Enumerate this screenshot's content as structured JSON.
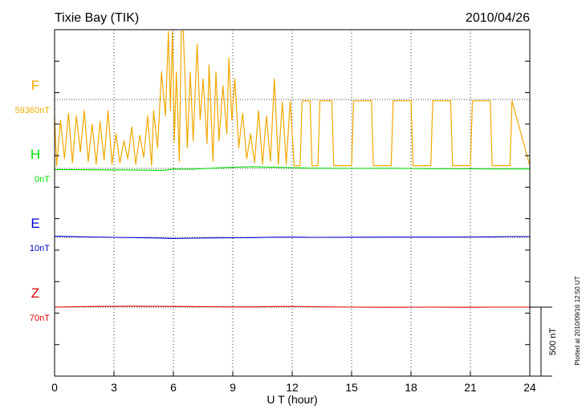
{
  "chart_data": {
    "type": "line",
    "title": "Tixie Bay (TIK)",
    "date": "2010/04/26",
    "xlabel": "U T (hour)",
    "xlim": [
      0,
      24
    ],
    "x_ticks": [
      0,
      3,
      6,
      9,
      12,
      15,
      18,
      21,
      24
    ],
    "x_tick_labels": [
      "0",
      "3",
      "6",
      "9",
      "12",
      "15",
      "18",
      "21",
      "24"
    ],
    "scale_bar_label": "500 nT",
    "scale_bar_nT": 500,
    "plotted_note": "Plotted at 2010/09/16 12:50 UT",
    "grid": "dotted-vertical",
    "series": [
      {
        "name": "F",
        "baseline_label": "59360nT",
        "baseline_nT": 59360,
        "color": "#f0a800",
        "points": [
          [
            0,
            -120
          ],
          [
            0.1,
            -480
          ],
          [
            0.3,
            -150
          ],
          [
            0.5,
            -430
          ],
          [
            0.7,
            -100
          ],
          [
            0.9,
            -460
          ],
          [
            1.1,
            -120
          ],
          [
            1.3,
            -380
          ],
          [
            1.5,
            -80
          ],
          [
            1.7,
            -450
          ],
          [
            1.9,
            -180
          ],
          [
            2.1,
            -470
          ],
          [
            2.3,
            -160
          ],
          [
            2.5,
            -440
          ],
          [
            2.7,
            -80
          ],
          [
            2.9,
            -470
          ],
          [
            3.1,
            -250
          ],
          [
            3.3,
            -460
          ],
          [
            3.5,
            -300
          ],
          [
            3.7,
            -430
          ],
          [
            3.9,
            -200
          ],
          [
            4.1,
            -470
          ],
          [
            4.3,
            -260
          ],
          [
            4.5,
            -420
          ],
          [
            4.7,
            -120
          ],
          [
            4.9,
            -480
          ],
          [
            5.0,
            -80
          ],
          [
            5.2,
            -350
          ],
          [
            5.4,
            200
          ],
          [
            5.6,
            -120
          ],
          [
            5.75,
            700
          ],
          [
            5.85,
            -80
          ],
          [
            5.95,
            600
          ],
          [
            6.05,
            -300
          ],
          [
            6.15,
            200
          ],
          [
            6.3,
            -450
          ],
          [
            6.4,
            500
          ],
          [
            6.5,
            900
          ],
          [
            6.6,
            100
          ],
          [
            6.7,
            -350
          ],
          [
            6.85,
            200
          ],
          [
            7.0,
            -300
          ],
          [
            7.2,
            400
          ],
          [
            7.35,
            -150
          ],
          [
            7.5,
            150
          ],
          [
            7.7,
            -320
          ],
          [
            7.8,
            250
          ],
          [
            7.9,
            -100
          ],
          [
            8.0,
            -450
          ],
          [
            8.15,
            200
          ],
          [
            8.3,
            -300
          ],
          [
            8.5,
            100
          ],
          [
            8.7,
            -250
          ],
          [
            8.8,
            300
          ],
          [
            8.95,
            -150
          ],
          [
            9.1,
            150
          ],
          [
            9.3,
            -350
          ],
          [
            9.5,
            -100
          ],
          [
            9.7,
            -430
          ],
          [
            9.9,
            -250
          ],
          [
            10.1,
            -460
          ],
          [
            10.3,
            -80
          ],
          [
            10.5,
            -470
          ],
          [
            10.7,
            -120
          ],
          [
            10.9,
            -450
          ],
          [
            11.1,
            150
          ],
          [
            11.3,
            -470
          ],
          [
            11.5,
            -20
          ],
          [
            11.7,
            -470
          ],
          [
            11.9,
            -10
          ],
          [
            12.1,
            -480
          ],
          [
            12.4,
            -480
          ],
          [
            12.5,
            -10
          ],
          [
            12.9,
            -10
          ],
          [
            13.0,
            -480
          ],
          [
            13.3,
            -480
          ],
          [
            13.4,
            -10
          ],
          [
            14.0,
            -10
          ],
          [
            14.1,
            -480
          ],
          [
            15.0,
            -480
          ],
          [
            15.1,
            -10
          ],
          [
            16.0,
            -10
          ],
          [
            16.1,
            -480
          ],
          [
            17.0,
            -480
          ],
          [
            17.1,
            -10
          ],
          [
            18.0,
            -10
          ],
          [
            18.1,
            -480
          ],
          [
            19.0,
            -480
          ],
          [
            19.1,
            -10
          ],
          [
            20.0,
            -10
          ],
          [
            20.1,
            -480
          ],
          [
            21.0,
            -480
          ],
          [
            21.1,
            -10
          ],
          [
            22.0,
            -10
          ],
          [
            22.1,
            -480
          ],
          [
            23.0,
            -480
          ],
          [
            23.1,
            -10
          ],
          [
            24.0,
            -480
          ]
        ]
      },
      {
        "name": "H",
        "baseline_label": "0nT",
        "baseline_nT": 0,
        "color": "#00dd00",
        "points": [
          [
            0,
            -8
          ],
          [
            2,
            -10
          ],
          [
            4,
            -12
          ],
          [
            5.5,
            -14
          ],
          [
            6,
            -5
          ],
          [
            7,
            -5
          ],
          [
            8,
            2
          ],
          [
            9,
            8
          ],
          [
            10,
            12
          ],
          [
            11,
            8
          ],
          [
            12,
            5
          ],
          [
            13,
            2
          ],
          [
            15,
            0
          ],
          [
            17,
            1
          ],
          [
            19,
            -2
          ],
          [
            21,
            -3
          ],
          [
            22,
            -4
          ],
          [
            23.5,
            -4
          ],
          [
            24,
            -4
          ]
        ]
      },
      {
        "name": "E",
        "baseline_label": "10nT",
        "baseline_nT": 10,
        "color": "#0000cc",
        "points": [
          [
            0,
            8
          ],
          [
            1,
            5
          ],
          [
            3,
            0
          ],
          [
            5,
            -4
          ],
          [
            6,
            -8
          ],
          [
            7,
            -6
          ],
          [
            8,
            -4
          ],
          [
            9,
            -3
          ],
          [
            10,
            -2
          ],
          [
            11,
            1
          ],
          [
            12,
            2
          ],
          [
            13,
            0
          ],
          [
            15,
            1
          ],
          [
            17,
            2
          ],
          [
            19,
            2
          ],
          [
            21,
            3
          ],
          [
            22,
            4
          ],
          [
            23,
            6
          ],
          [
            24,
            6
          ]
        ]
      },
      {
        "name": "Z",
        "baseline_label": "70nT",
        "baseline_nT": 70,
        "color": "#dd0000",
        "points": [
          [
            0,
            0
          ],
          [
            1,
            3
          ],
          [
            2,
            5
          ],
          [
            3,
            6
          ],
          [
            4,
            7
          ],
          [
            5,
            6
          ],
          [
            6,
            5
          ],
          [
            7,
            4
          ],
          [
            8,
            3
          ],
          [
            9,
            2
          ],
          [
            10,
            2
          ],
          [
            11,
            4
          ],
          [
            12,
            6
          ],
          [
            13,
            3
          ],
          [
            15,
            0
          ],
          [
            17,
            -1
          ],
          [
            19,
            0
          ],
          [
            21,
            -1
          ],
          [
            22,
            0
          ],
          [
            23,
            0
          ],
          [
            24,
            0
          ]
        ]
      }
    ]
  }
}
